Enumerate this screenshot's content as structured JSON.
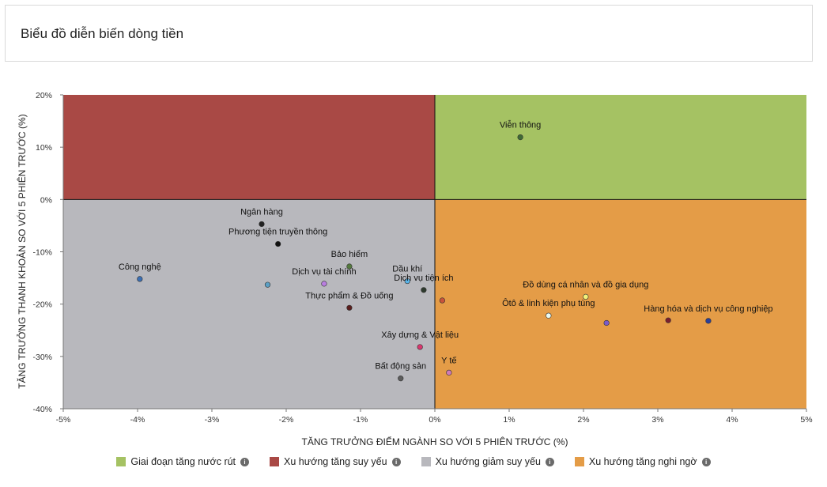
{
  "header": {
    "title": "Biểu đồ diễn biến dòng tiền"
  },
  "legend": {
    "items": [
      {
        "label": "Giai đoạn tăng nước rút",
        "color": "#a5c263",
        "icon": "info-icon"
      },
      {
        "label": "Xu hướng tăng suy yếu",
        "color": "#a94945",
        "icon": "info-icon"
      },
      {
        "label": "Xu hướng giảm suy yếu",
        "color": "#b8b8bd",
        "icon": "info-icon"
      },
      {
        "label": "Xu hướng tăng nghi ngờ",
        "color": "#e49c47",
        "icon": "info-icon"
      }
    ]
  },
  "chart_data": {
    "type": "scatter",
    "title": "",
    "xlabel": "TĂNG TRƯỞNG ĐIỂM NGÀNH SO VỚI 5 PHIÊN TRƯỚC (%)",
    "ylabel": "TĂNG TRƯỞNG THANH KHOẢN SO VỚI 5 PHIÊN TRƯỚC (%)",
    "xlim": [
      -5,
      5
    ],
    "ylim": [
      -40,
      20
    ],
    "x_ticks": [
      -5,
      -4,
      -3,
      -2,
      -1,
      0,
      1,
      2,
      3,
      4,
      5
    ],
    "x_tick_labels": [
      "-5%",
      "-4%",
      "-3%",
      "-2%",
      "-1%",
      "0%",
      "1%",
      "2%",
      "3%",
      "4%",
      "5%"
    ],
    "y_ticks": [
      20,
      10,
      0,
      -10,
      -20,
      -30,
      -40
    ],
    "y_tick_labels": [
      "20%",
      "10%",
      "0%",
      "-10%",
      "-20%",
      "-30%",
      "-40%"
    ],
    "grid": false,
    "quadrants": [
      {
        "name": "Xu hướng tăng suy yếu",
        "x": [
          -5,
          0
        ],
        "y": [
          0,
          20
        ],
        "color": "#a94945"
      },
      {
        "name": "Giai đoạn tăng nước rút",
        "x": [
          0,
          5
        ],
        "y": [
          0,
          20
        ],
        "color": "#a5c263"
      },
      {
        "name": "Xu hướng giảm suy yếu",
        "x": [
          -5,
          0
        ],
        "y": [
          -40,
          0
        ],
        "color": "#b8b8bd"
      },
      {
        "name": "Xu hướng tăng nghi ngờ",
        "x": [
          0,
          5
        ],
        "y": [
          -40,
          0
        ],
        "color": "#e49c47"
      }
    ],
    "points": [
      {
        "label": "Viễn thông",
        "x": 1.15,
        "y": 11.9,
        "color": "#3f6a34"
      },
      {
        "label": "Ngân hàng",
        "x": -2.33,
        "y": -4.7,
        "color": "#222222"
      },
      {
        "label": "Phương tiện truyền thông",
        "x": -2.11,
        "y": -8.5,
        "color": "#111111"
      },
      {
        "label": "Công nghệ",
        "x": -3.97,
        "y": -15.2,
        "color": "#3b6fb4"
      },
      {
        "label": "",
        "x": -2.25,
        "y": -16.3,
        "color": "#5b9fc4"
      },
      {
        "label": "Bảo hiểm",
        "x": -1.15,
        "y": -12.8,
        "color": "#557a3f"
      },
      {
        "label": "Dịch vụ tài chính",
        "x": -1.49,
        "y": -16.1,
        "color": "#b97ee0"
      },
      {
        "label": "Dầu khí",
        "x": -0.37,
        "y": -15.6,
        "color": "#5ab4e8"
      },
      {
        "label": "Dịch vụ tiện ích",
        "x": -0.15,
        "y": -17.3,
        "color": "#2e3a2e"
      },
      {
        "label": "Thực phẩm & Đồ uống",
        "x": -1.15,
        "y": -20.7,
        "color": "#5a1e1e"
      },
      {
        "label": "",
        "x": 0.1,
        "y": -19.3,
        "color": "#c8533a"
      },
      {
        "label": "Xây dựng & Vật liệu",
        "x": -0.2,
        "y": -28.2,
        "color": "#d9366e"
      },
      {
        "label": "Bất động sản",
        "x": -0.46,
        "y": -34.2,
        "color": "#5c5c5c"
      },
      {
        "label": "Y tế",
        "x": 0.19,
        "y": -33.1,
        "color": "#d07bb8"
      },
      {
        "label": "Đồ dùng cá nhân và đồ gia dụng",
        "x": 2.03,
        "y": -18.6,
        "color": "#f2f27a"
      },
      {
        "label": "Ôtô & linh kiện phụ tùng",
        "x": 1.53,
        "y": -22.2,
        "color": "#eafaf2"
      },
      {
        "label": "",
        "x": 2.31,
        "y": -23.6,
        "color": "#7a5ac9"
      },
      {
        "label": "",
        "x": 3.14,
        "y": -23.1,
        "color": "#7a1f2e"
      },
      {
        "label": "Hàng hóa và dịch vụ công nghiệp",
        "x": 3.68,
        "y": -23.2,
        "color": "#2a3f9a"
      }
    ]
  }
}
